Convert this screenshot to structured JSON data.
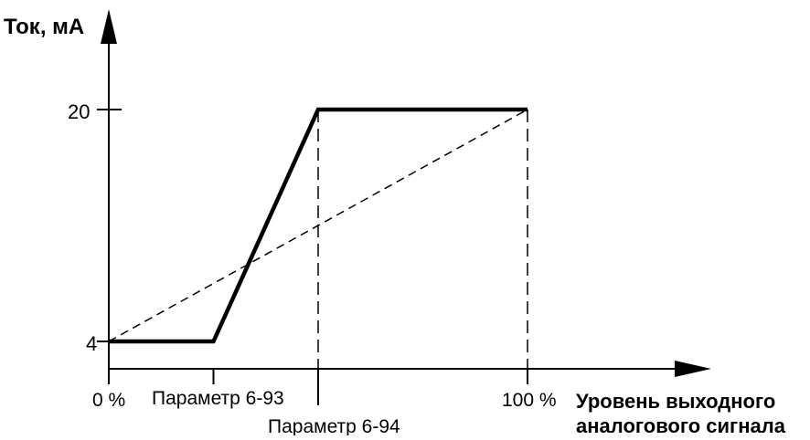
{
  "chart_data": {
    "type": "line",
    "ylabel": "Ток, мА",
    "xlabel_lines": [
      "Уровень выходного",
      "аналогового сигнала"
    ],
    "y_ticks": [
      {
        "value": 4,
        "label": "4"
      },
      {
        "value": 20,
        "label": "20"
      }
    ],
    "x_ticks": [
      {
        "key": "zero",
        "value": 0,
        "label": "0 %"
      },
      {
        "key": "p693",
        "value": 25,
        "label": "Параметр 6-93"
      },
      {
        "key": "p694",
        "value": 50,
        "label": "Параметр 6-94"
      },
      {
        "key": "hundred",
        "value": 100,
        "label": "100 %"
      }
    ],
    "xlim": [
      0,
      100
    ],
    "ylim": [
      4,
      20
    ],
    "series": [
      {
        "style": "solid-thick",
        "x": [
          0,
          25,
          50,
          100
        ],
        "y": [
          4,
          4,
          20,
          20
        ]
      },
      {
        "style": "dashed",
        "x": [
          0,
          100
        ],
        "y": [
          4,
          20
        ]
      }
    ],
    "guide_lines_x": [
      50,
      100
    ],
    "grid": false
  }
}
